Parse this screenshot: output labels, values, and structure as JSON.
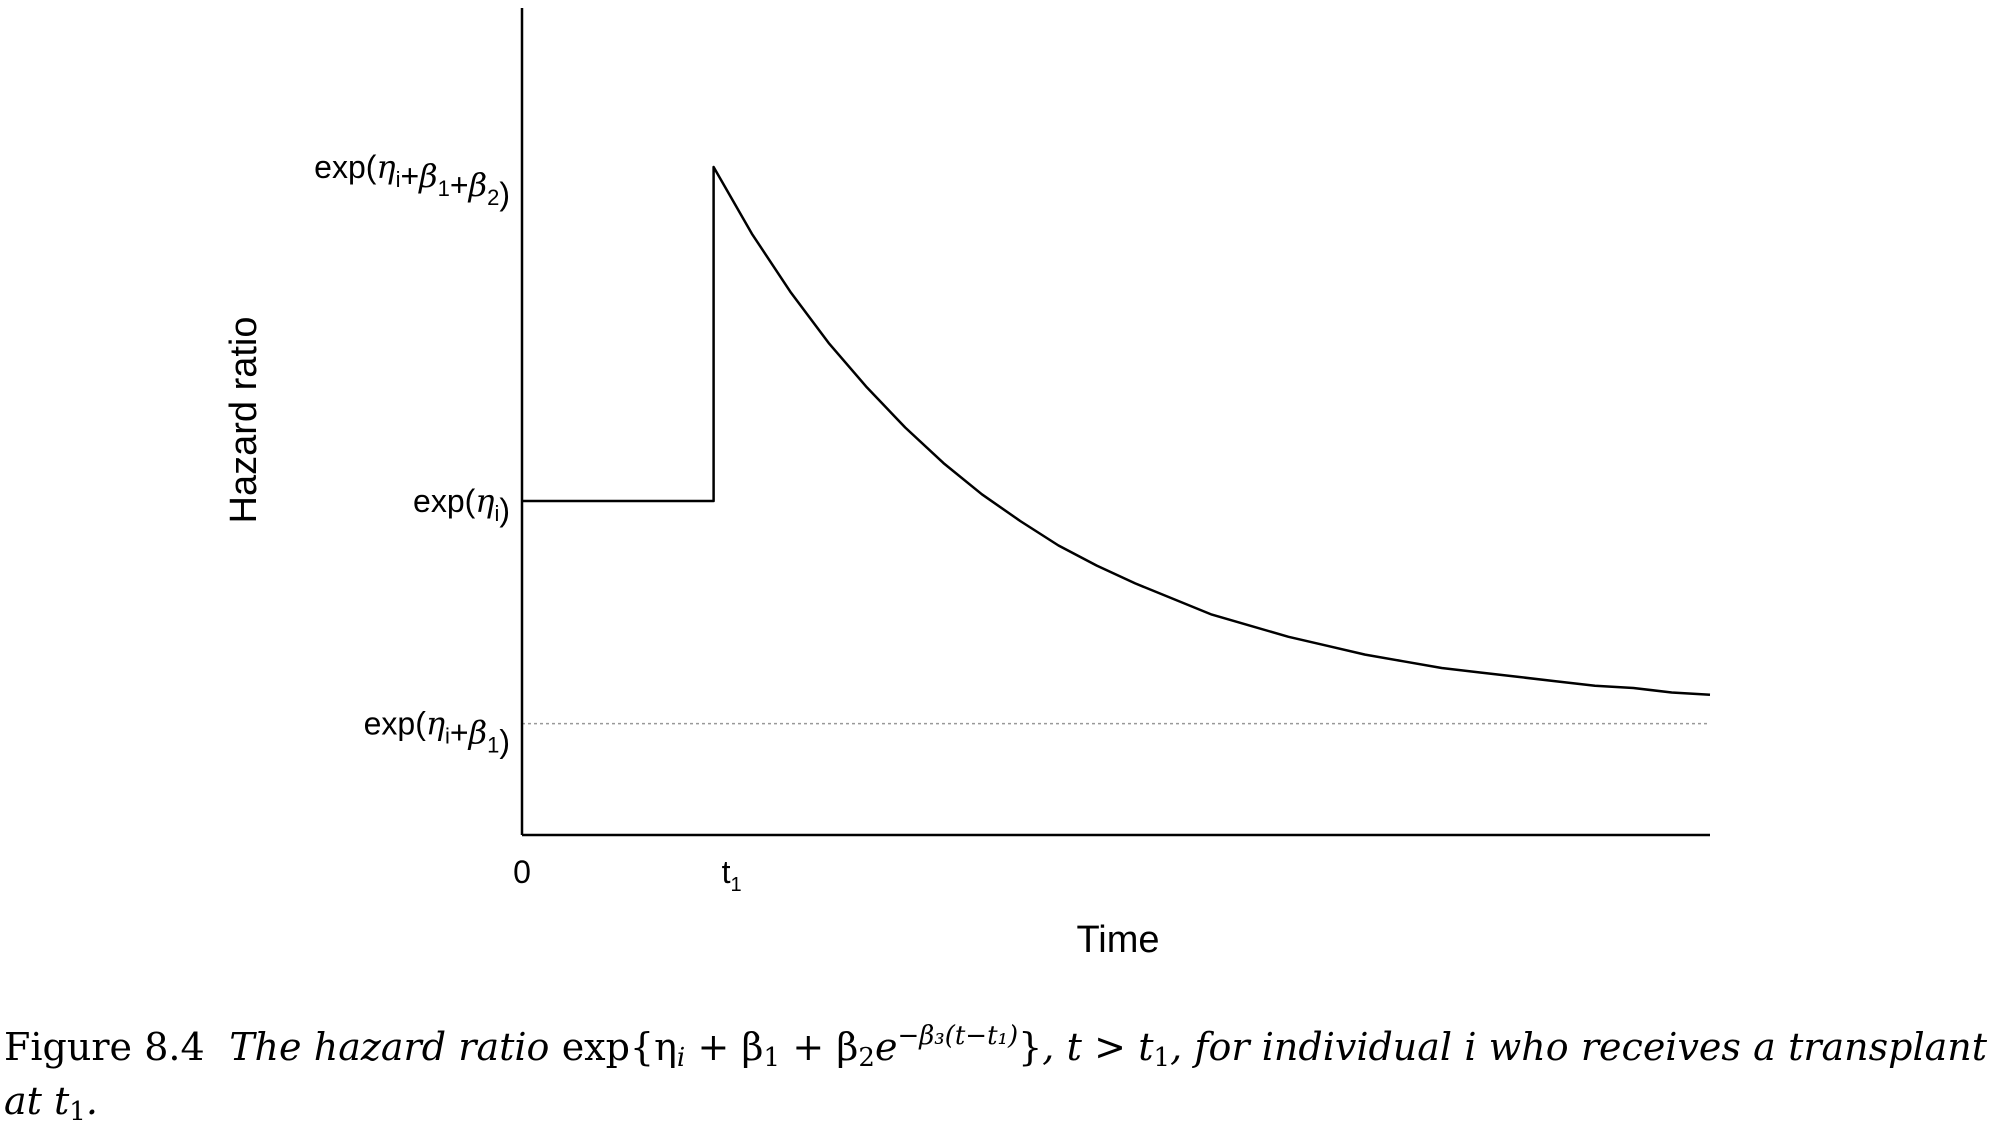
{
  "chart_data": {
    "type": "line",
    "xlabel": "Time",
    "ylabel": "Hazard ratio",
    "x_ticks": [
      {
        "x": 0,
        "label": "0"
      },
      {
        "x": 1,
        "label": "t",
        "sub": "1"
      }
    ],
    "y_ticks": [
      {
        "y": 3.0,
        "label": "exp(η_i+β_1+β_2)",
        "parts": [
          [
            "exp(",
            ""
          ],
          [
            "η",
            "i"
          ],
          [
            "+",
            ""
          ],
          [
            "β",
            "1"
          ],
          [
            "+",
            ""
          ],
          [
            "β",
            "2"
          ],
          [
            ")",
            ""
          ]
        ]
      },
      {
        "y": 1.5,
        "label": "exp(η_i)",
        "parts": [
          [
            "exp(",
            ""
          ],
          [
            "η",
            "i"
          ],
          [
            ")",
            ""
          ]
        ]
      },
      {
        "y": 0.5,
        "label": "exp(η_i+β_1)",
        "parts": [
          [
            "exp(",
            ""
          ],
          [
            "η",
            "i"
          ],
          [
            "+",
            ""
          ],
          [
            "β",
            "1"
          ],
          [
            ")",
            ""
          ]
        ]
      }
    ],
    "xlim": [
      0,
      6.2
    ],
    "ylim": [
      0,
      3.75
    ],
    "series": [
      {
        "x": [
          0,
          1,
          1,
          1.2,
          1.4,
          1.6,
          1.8,
          2.0,
          2.2,
          2.4,
          2.6,
          2.8,
          3.0,
          3.2,
          3.4,
          3.6,
          3.8,
          4.0,
          4.2,
          4.4,
          4.6,
          4.8,
          5.0,
          5.2,
          5.4,
          5.6,
          5.8,
          6.0,
          6.2
        ],
        "y": [
          1.5,
          1.5,
          3.0,
          2.7,
          2.44,
          2.21,
          2.01,
          1.83,
          1.67,
          1.53,
          1.41,
          1.3,
          1.21,
          1.13,
          1.06,
          0.99,
          0.94,
          0.89,
          0.85,
          0.81,
          0.78,
          0.75,
          0.73,
          0.71,
          0.69,
          0.67,
          0.66,
          0.64,
          0.63
        ],
        "style": "solid"
      }
    ],
    "reference_line": {
      "y": 0.5,
      "style": "dotted",
      "color": "#999999"
    }
  },
  "caption": {
    "label": "Figure 8.4",
    "text_before": "The hazard ratio",
    "formula_main": "exp{η",
    "formula_sub_i": "i",
    "formula_plus1": " + β",
    "formula_sub_1": "1",
    "formula_plus2": " + β",
    "formula_sub_2": "2",
    "formula_e": "e",
    "formula_exponent": "−β₃(t−t₁)",
    "formula_close": "}",
    "text_after1": ", t > t",
    "text_after1_sub": "1",
    "text_after2": ", for individual i who receives a transplant at t",
    "text_after2_sub": "1",
    "text_end": "."
  }
}
